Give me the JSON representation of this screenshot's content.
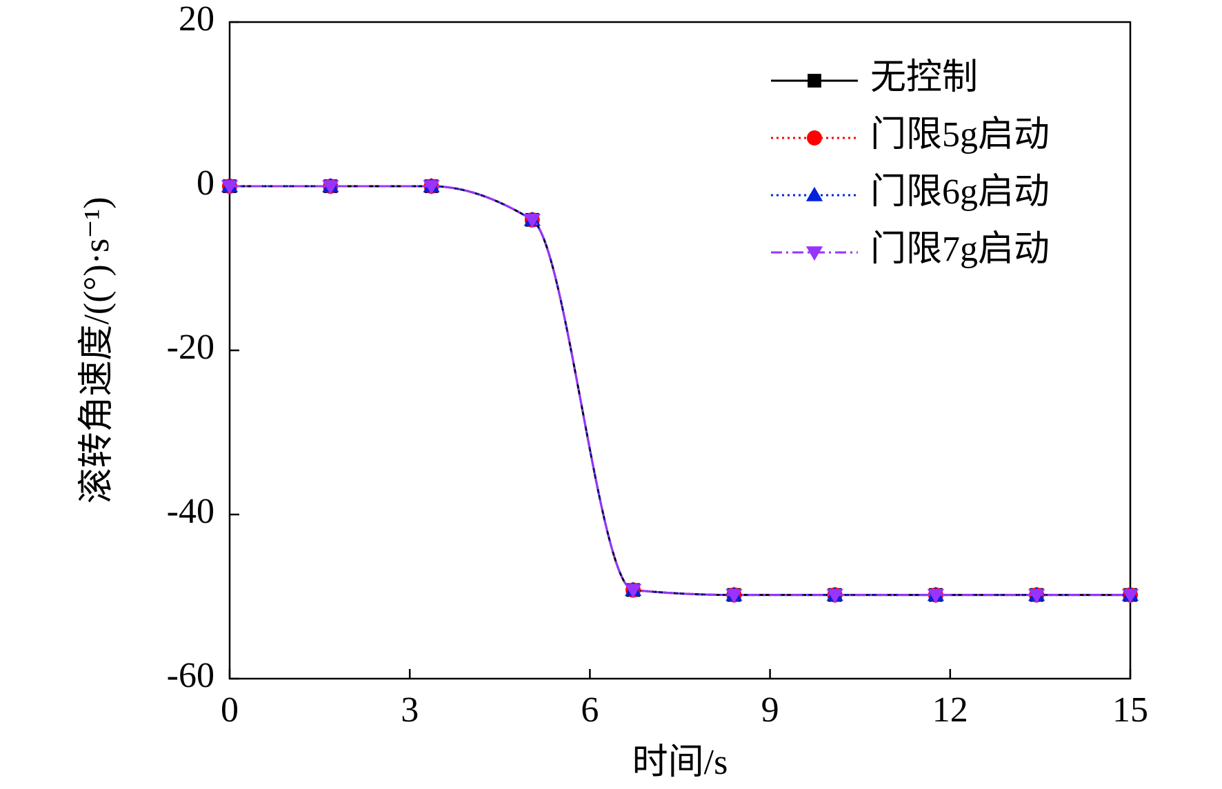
{
  "chart_data": {
    "type": "line",
    "x_label": "时间/s",
    "y_label": "滚转角速度/((°)·s⁻¹)",
    "x": [
      0,
      1.68,
      3.36,
      5.04,
      6.72,
      8.4,
      10.08,
      11.76,
      13.44,
      15
    ],
    "series": [
      {
        "name": "无控制",
        "color": "#000000",
        "marker": "square",
        "dash": "solid",
        "values": [
          0,
          0,
          0,
          -4.1,
          -49.2,
          -49.8,
          -49.8,
          -49.8,
          -49.8,
          -49.8
        ]
      },
      {
        "name": "门限5g启动",
        "color": "#ff0000",
        "marker": "circle",
        "dash": "dotted",
        "values": [
          0,
          0,
          0,
          -4.1,
          -49.2,
          -49.8,
          -49.8,
          -49.8,
          -49.8,
          -49.8
        ]
      },
      {
        "name": "门限6g启动",
        "color": "#0022dd",
        "marker": "triangle-up",
        "dash": "dotted",
        "values": [
          0,
          0,
          0,
          -4.1,
          -49.2,
          -49.8,
          -49.8,
          -49.8,
          -49.8,
          -49.8
        ]
      },
      {
        "name": "门限7g启动",
        "color": "#9933ff",
        "marker": "triangle-down",
        "dash": "dash-dot",
        "values": [
          0,
          0,
          0,
          -4.1,
          -49.2,
          -49.8,
          -49.8,
          -49.8,
          -49.8,
          -49.8
        ]
      }
    ],
    "xlim": [
      0,
      15
    ],
    "xticks": [
      0,
      3,
      6,
      9,
      12,
      15
    ],
    "ylim": [
      -60,
      20
    ],
    "yticks": [
      -60,
      -40,
      -20,
      0,
      20
    ],
    "grid": false,
    "legend": "upper right"
  }
}
